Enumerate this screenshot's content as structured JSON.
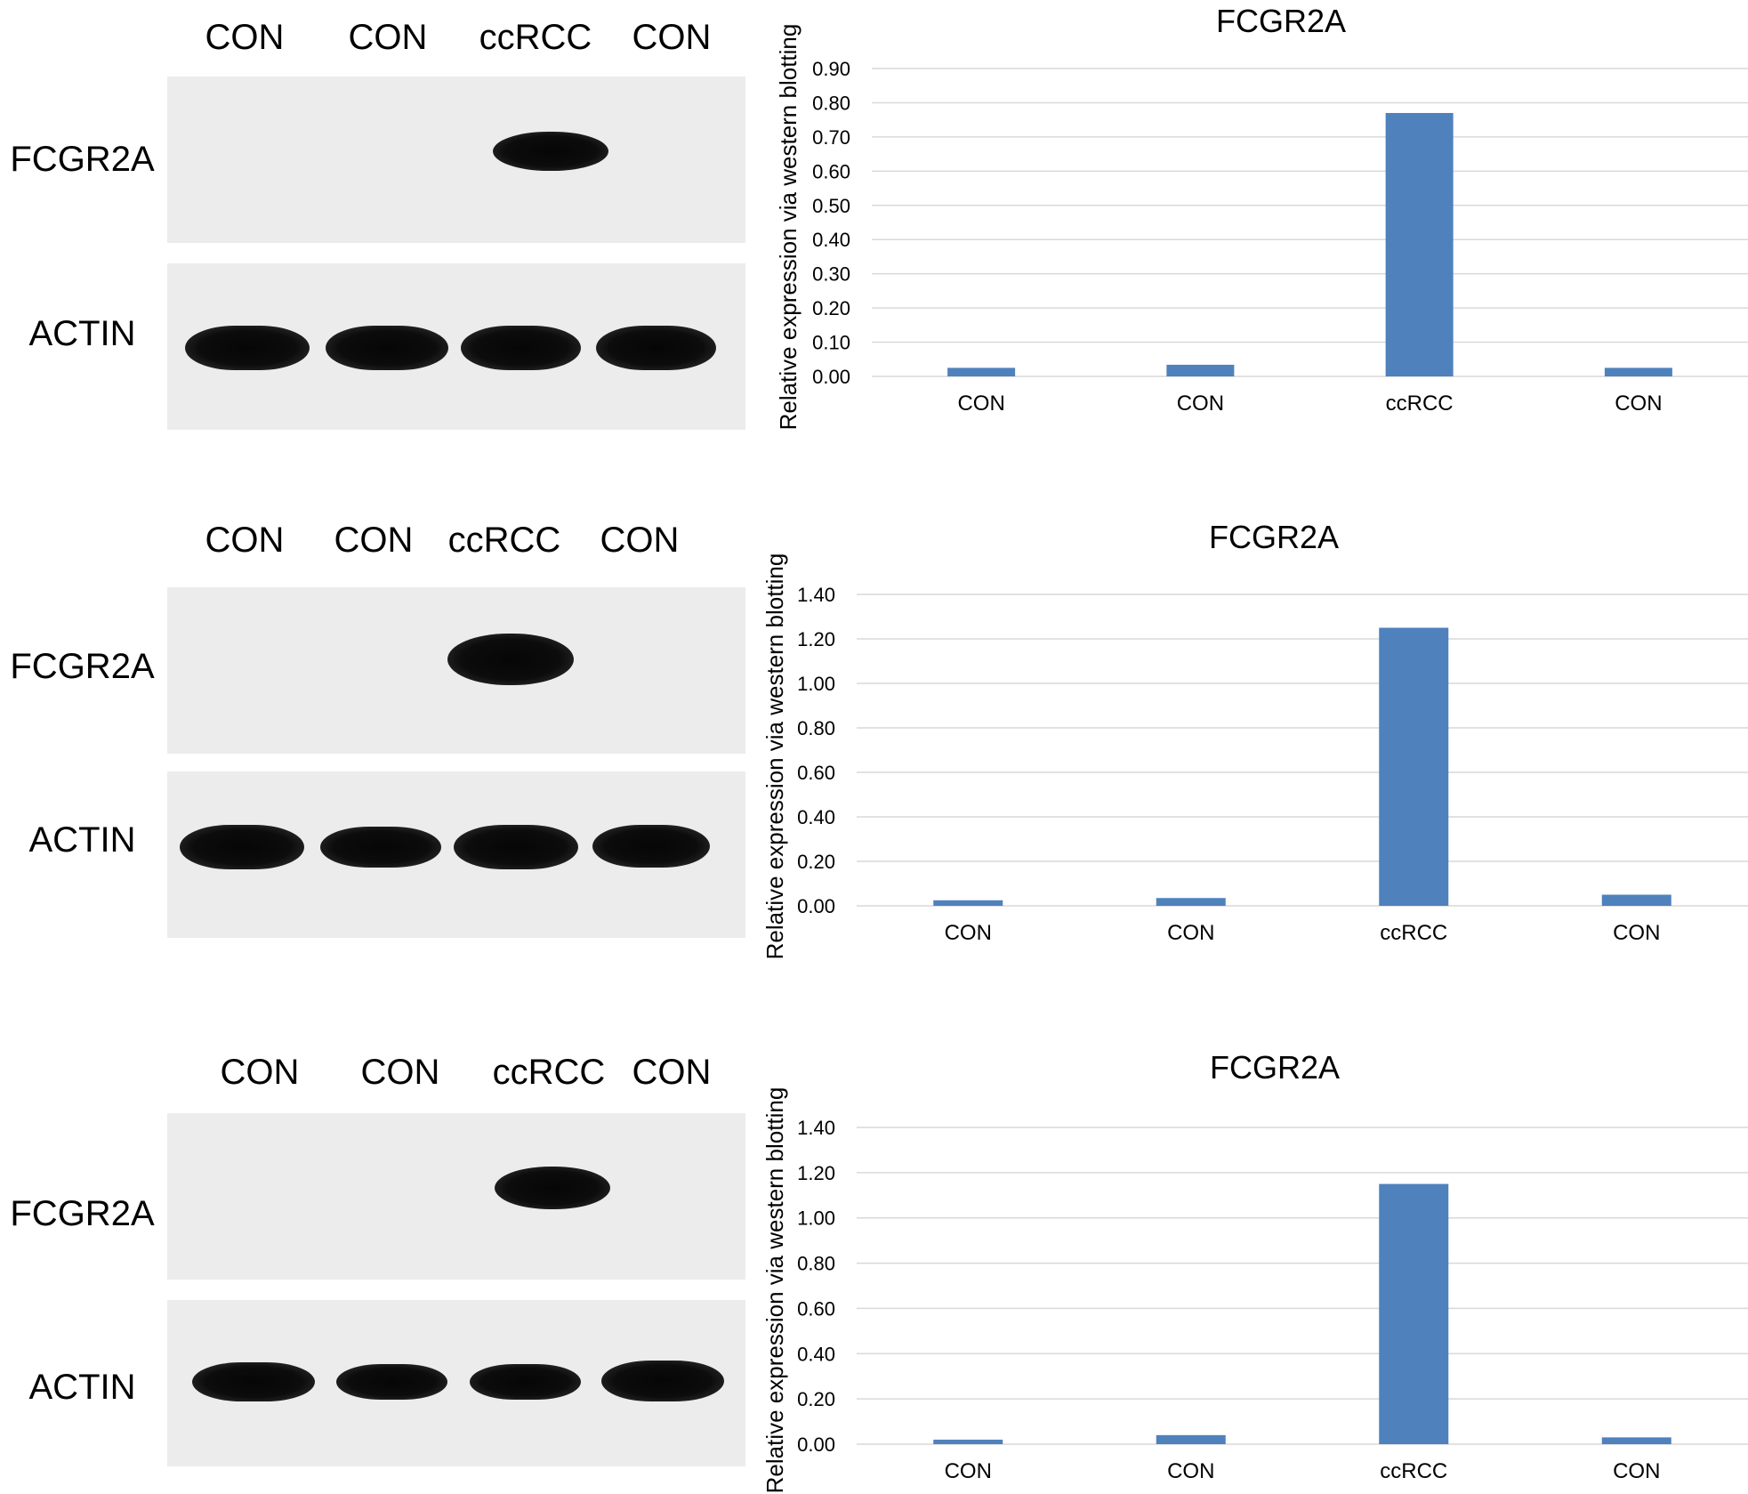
{
  "figures": [
    {
      "blot": {
        "lanes": [
          "CON",
          "CON",
          "ccRCC",
          "CON"
        ],
        "rows": [
          "FCGR2A",
          "ACTIN"
        ]
      }
    },
    {
      "blot": {
        "lanes": [
          "CON",
          "CON",
          "ccRCC",
          "CON"
        ],
        "rows": [
          "FCGR2A",
          "ACTIN"
        ]
      }
    },
    {
      "blot": {
        "lanes": [
          "CON",
          "CON",
          "ccRCC",
          "CON"
        ],
        "rows": [
          "FCGR2A",
          "ACTIN"
        ]
      }
    }
  ],
  "chart_data": [
    {
      "type": "bar",
      "title": "FCGR2A",
      "ylabel": "Relative expression via western blotting",
      "xlabel": "",
      "categories": [
        "CON",
        "CON",
        "ccRCC",
        "CON"
      ],
      "values": [
        0.025,
        0.034,
        0.77,
        0.025
      ],
      "ylim": [
        0,
        0.9
      ],
      "yticks": [
        "0.00",
        "0.10",
        "0.20",
        "0.30",
        "0.40",
        "0.50",
        "0.60",
        "0.70",
        "0.80",
        "0.90"
      ],
      "grid": true,
      "legend": "none",
      "bar_color": "#4f81bd",
      "grid_color": "#d9d9d9"
    },
    {
      "type": "bar",
      "title": "FCGR2A",
      "ylabel": "Relative expression via western blotting",
      "xlabel": "",
      "categories": [
        "CON",
        "CON",
        "ccRCC",
        "CON"
      ],
      "values": [
        0.025,
        0.035,
        1.25,
        0.05
      ],
      "ylim": [
        0,
        1.4
      ],
      "yticks": [
        "0.00",
        "0.20",
        "0.40",
        "0.60",
        "0.80",
        "1.00",
        "1.20",
        "1.40"
      ],
      "grid": true,
      "legend": "none",
      "bar_color": "#4f81bd",
      "grid_color": "#d9d9d9"
    },
    {
      "type": "bar",
      "title": "FCGR2A",
      "ylabel": "Relative expression via western blotting",
      "xlabel": "",
      "categories": [
        "CON",
        "CON",
        "ccRCC",
        "CON"
      ],
      "values": [
        0.02,
        0.04,
        1.15,
        0.03
      ],
      "ylim": [
        0,
        1.4
      ],
      "yticks": [
        "0.00",
        "0.20",
        "0.40",
        "0.60",
        "0.80",
        "1.00",
        "1.20",
        "1.40"
      ],
      "grid": true,
      "legend": "none",
      "bar_color": "#4f81bd",
      "grid_color": "#d9d9d9"
    }
  ]
}
